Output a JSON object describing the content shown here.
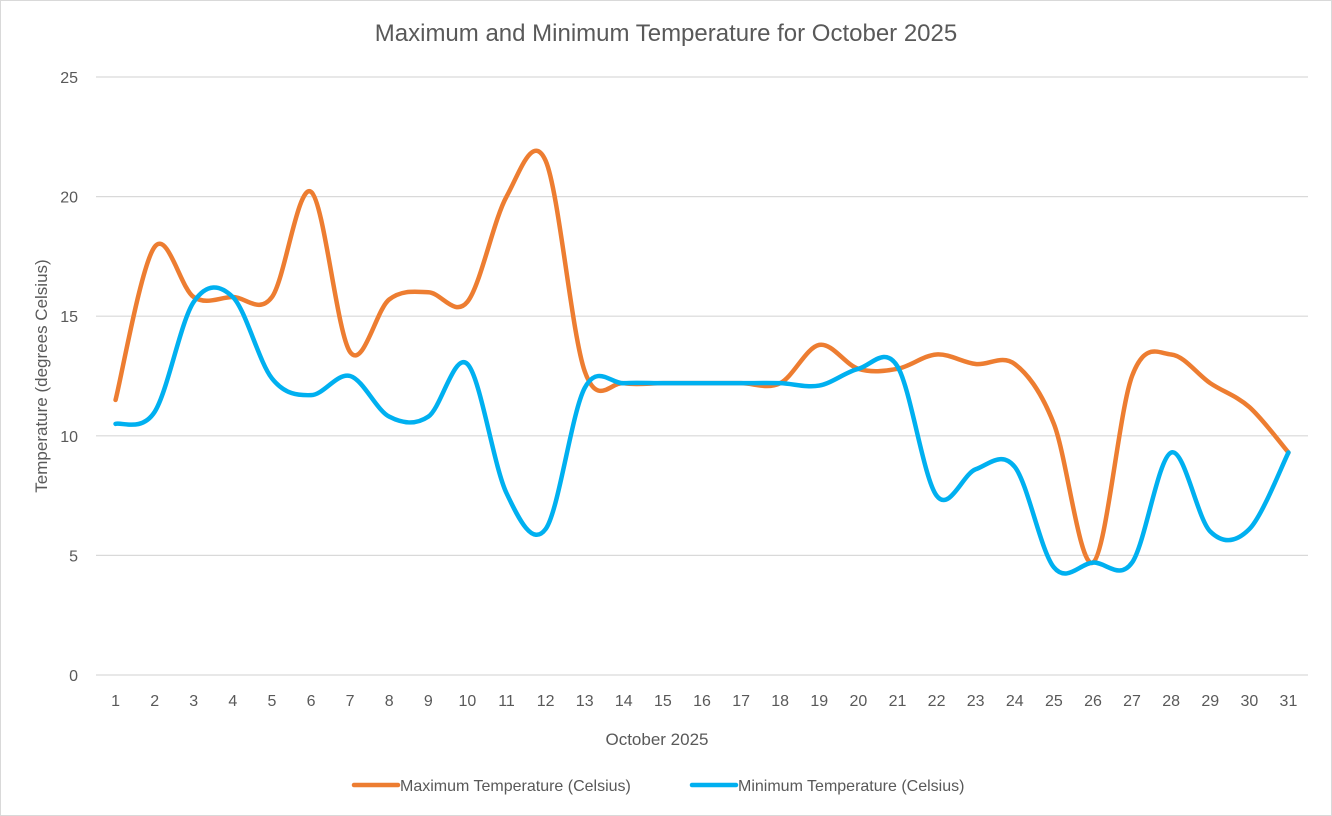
{
  "chart_data": {
    "type": "line",
    "title": "Maximum and Minimum Temperature for October 2025",
    "xlabel": "October 2025",
    "ylabel": "Temperature (degrees Celsius)",
    "ylim": [
      0,
      25
    ],
    "yticks": [
      0,
      5,
      10,
      15,
      20,
      25
    ],
    "grid": true,
    "smooth": true,
    "legend_position": "bottom",
    "categories": [
      "1",
      "2",
      "3",
      "4",
      "5",
      "6",
      "7",
      "8",
      "9",
      "10",
      "11",
      "12",
      "13",
      "14",
      "15",
      "16",
      "17",
      "18",
      "19",
      "20",
      "21",
      "22",
      "23",
      "24",
      "25",
      "26",
      "27",
      "28",
      "29",
      "30",
      "31"
    ],
    "series": [
      {
        "name": "Maximum Temperature (Celsius)",
        "color": "#ed7d31",
        "values": [
          11.5,
          17.9,
          15.8,
          15.8,
          15.8,
          20.2,
          13.5,
          15.7,
          16.0,
          15.6,
          20.0,
          21.5,
          12.7,
          12.2,
          12.2,
          12.2,
          12.2,
          12.2,
          13.8,
          12.8,
          12.8,
          13.4,
          13.0,
          13.0,
          10.5,
          4.7,
          12.5,
          13.4,
          12.2,
          11.2,
          9.3
        ]
      },
      {
        "name": "Minimum Temperature (Celsius)",
        "color": "#00b0f0",
        "values": [
          10.5,
          11.0,
          15.6,
          15.8,
          12.4,
          11.7,
          12.5,
          10.8,
          10.8,
          13.0,
          7.6,
          6.1,
          12.0,
          12.2,
          12.2,
          12.2,
          12.2,
          12.2,
          12.1,
          12.8,
          12.9,
          7.5,
          8.6,
          8.7,
          4.5,
          4.7,
          4.7,
          9.3,
          6.0,
          6.1,
          9.3
        ]
      }
    ]
  }
}
